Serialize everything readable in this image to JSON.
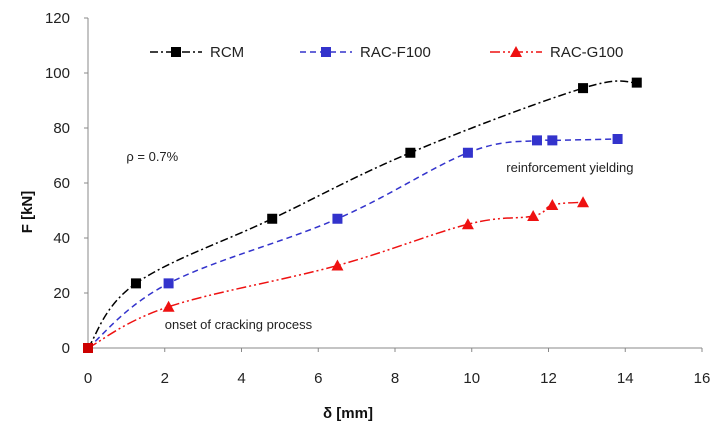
{
  "chart_data": {
    "type": "line",
    "xlabel": "δ [mm]",
    "ylabel": "F [kN]",
    "xlim": [
      0,
      16
    ],
    "ylim": [
      0,
      120
    ],
    "xticks": [
      "0",
      "2",
      "4",
      "6",
      "8",
      "10",
      "12",
      "14",
      "16"
    ],
    "yticks": [
      "0",
      "20",
      "40",
      "60",
      "80",
      "100",
      "120"
    ],
    "grid": false,
    "legend_position": "top",
    "series": [
      {
        "name": "RCM",
        "color": "#000000",
        "marker": "square",
        "dash": "dash-dot",
        "x": [
          0,
          1.25,
          4.8,
          8.4,
          12.9,
          14.3
        ],
        "y": [
          0,
          23.5,
          47,
          71,
          94.5,
          96.5
        ]
      },
      {
        "name": "RAC-F100",
        "color": "#3333cc",
        "marker": "square",
        "dash": "dashed",
        "x": [
          0,
          2.1,
          6.5,
          9.9,
          11.7,
          12.1,
          13.8
        ],
        "y": [
          0,
          23.5,
          47,
          71,
          75.5,
          75.5,
          76
        ]
      },
      {
        "name": "RAC-G100",
        "color": "#ee1111",
        "marker": "triangle",
        "dash": "dash-dot-dot",
        "x": [
          0,
          2.1,
          6.5,
          9.9,
          11.6,
          12.1,
          12.9
        ],
        "y": [
          0,
          15,
          30,
          45,
          48,
          52,
          53
        ]
      }
    ],
    "annotations": [
      {
        "text": "ρ = 0.7%",
        "x": 1.0,
        "y": 68
      },
      {
        "text": "reinforcement yielding",
        "x": 10.9,
        "y": 64
      },
      {
        "text": "onset of cracking process",
        "x": 2.0,
        "y": 7
      }
    ]
  }
}
